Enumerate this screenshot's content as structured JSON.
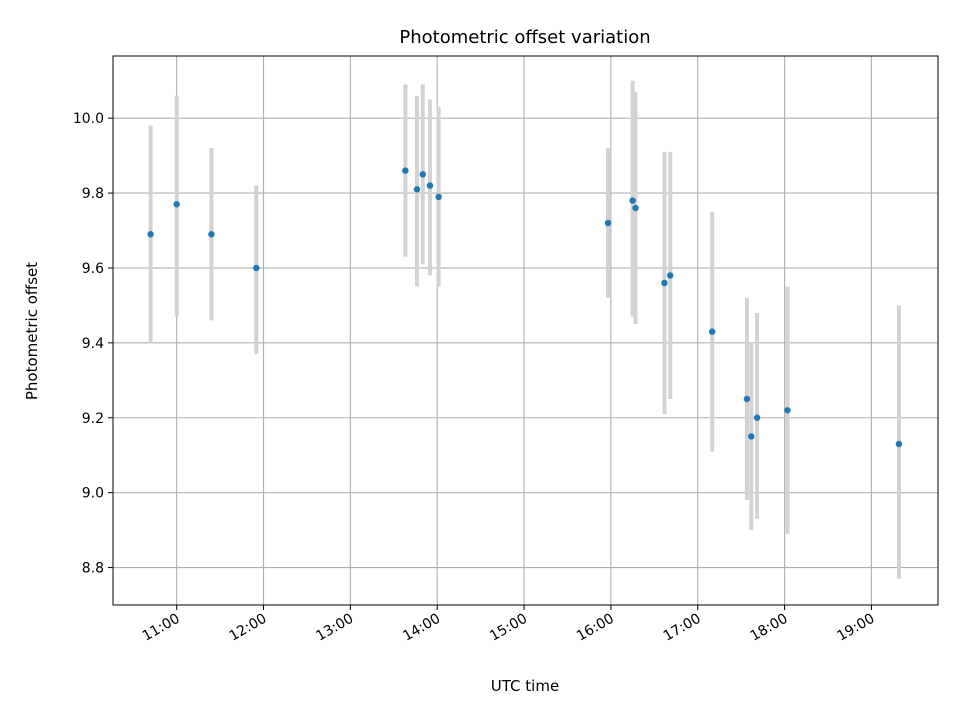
{
  "chart_data": {
    "type": "scatter",
    "title": "Photometric offset variation",
    "xlabel": "UTC time",
    "ylabel": "Photometric offset",
    "x_is_time": true,
    "xlim": [
      "10:16",
      "19:46"
    ],
    "ylim": [
      8.7,
      10.166
    ],
    "grid": true,
    "x_ticks": [
      "11:00",
      "12:00",
      "13:00",
      "14:00",
      "15:00",
      "16:00",
      "17:00",
      "18:00",
      "19:00"
    ],
    "y_ticks": [
      "8.8",
      "9.0",
      "9.2",
      "9.4",
      "9.6",
      "9.8",
      "10.0"
    ],
    "colors": {
      "point": "#1f77b4",
      "errorbar": "#d3d3d3",
      "grid": "#b0b0b0"
    },
    "points": [
      {
        "x": "10:42",
        "y": 9.69,
        "ylow": 9.4,
        "yhigh": 9.98
      },
      {
        "x": "11:00",
        "y": 9.77,
        "ylow": 9.47,
        "yhigh": 10.06
      },
      {
        "x": "11:24",
        "y": 9.69,
        "ylow": 9.46,
        "yhigh": 9.92
      },
      {
        "x": "11:55",
        "y": 9.6,
        "ylow": 9.37,
        "yhigh": 9.82
      },
      {
        "x": "13:38",
        "y": 9.86,
        "ylow": 9.63,
        "yhigh": 10.09
      },
      {
        "x": "13:46",
        "y": 9.81,
        "ylow": 9.55,
        "yhigh": 10.06
      },
      {
        "x": "13:50",
        "y": 9.85,
        "ylow": 9.61,
        "yhigh": 10.09
      },
      {
        "x": "13:55",
        "y": 9.82,
        "ylow": 9.58,
        "yhigh": 10.05
      },
      {
        "x": "14:01",
        "y": 9.79,
        "ylow": 9.55,
        "yhigh": 10.03
      },
      {
        "x": "15:58",
        "y": 9.72,
        "ylow": 9.52,
        "yhigh": 9.92
      },
      {
        "x": "16:15",
        "y": 9.78,
        "ylow": 9.47,
        "yhigh": 10.1
      },
      {
        "x": "16:17",
        "y": 9.76,
        "ylow": 9.45,
        "yhigh": 10.07
      },
      {
        "x": "16:37",
        "y": 9.56,
        "ylow": 9.21,
        "yhigh": 9.91
      },
      {
        "x": "16:41",
        "y": 9.58,
        "ylow": 9.25,
        "yhigh": 9.91
      },
      {
        "x": "17:10",
        "y": 9.43,
        "ylow": 9.11,
        "yhigh": 9.75
      },
      {
        "x": "17:34",
        "y": 9.25,
        "ylow": 8.98,
        "yhigh": 9.52
      },
      {
        "x": "17:37",
        "y": 9.15,
        "ylow": 8.9,
        "yhigh": 9.4
      },
      {
        "x": "17:41",
        "y": 9.2,
        "ylow": 8.93,
        "yhigh": 9.48
      },
      {
        "x": "18:02",
        "y": 9.22,
        "ylow": 8.89,
        "yhigh": 9.55
      },
      {
        "x": "19:19",
        "y": 9.13,
        "ylow": 8.77,
        "yhigh": 9.5
      }
    ]
  }
}
